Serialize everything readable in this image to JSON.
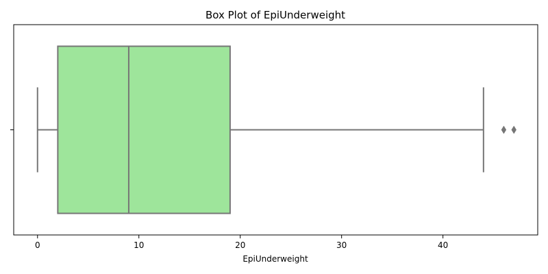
{
  "chart_data": {
    "type": "box",
    "title": "Box Plot of EpiUnderweight",
    "xlabel": "EpiUnderweight",
    "ylabel": "",
    "orientation": "horizontal",
    "xlim": [
      -2.35,
      49.35
    ],
    "x_ticks": [
      0,
      10,
      20,
      30,
      40
    ],
    "x_tick_labels": [
      "0",
      "10",
      "20",
      "30",
      "40"
    ],
    "y_tick_labels": [
      ""
    ],
    "grid": false,
    "series": [
      {
        "name": "EpiUnderweight",
        "whisker_low": 0,
        "q1": 2,
        "median": 9,
        "q3": 19,
        "whisker_high": 44,
        "outliers": [
          46,
          47
        ]
      }
    ],
    "colors": {
      "box_fill": "#9ee59b",
      "line": "#767676",
      "axis": "#000000"
    }
  }
}
